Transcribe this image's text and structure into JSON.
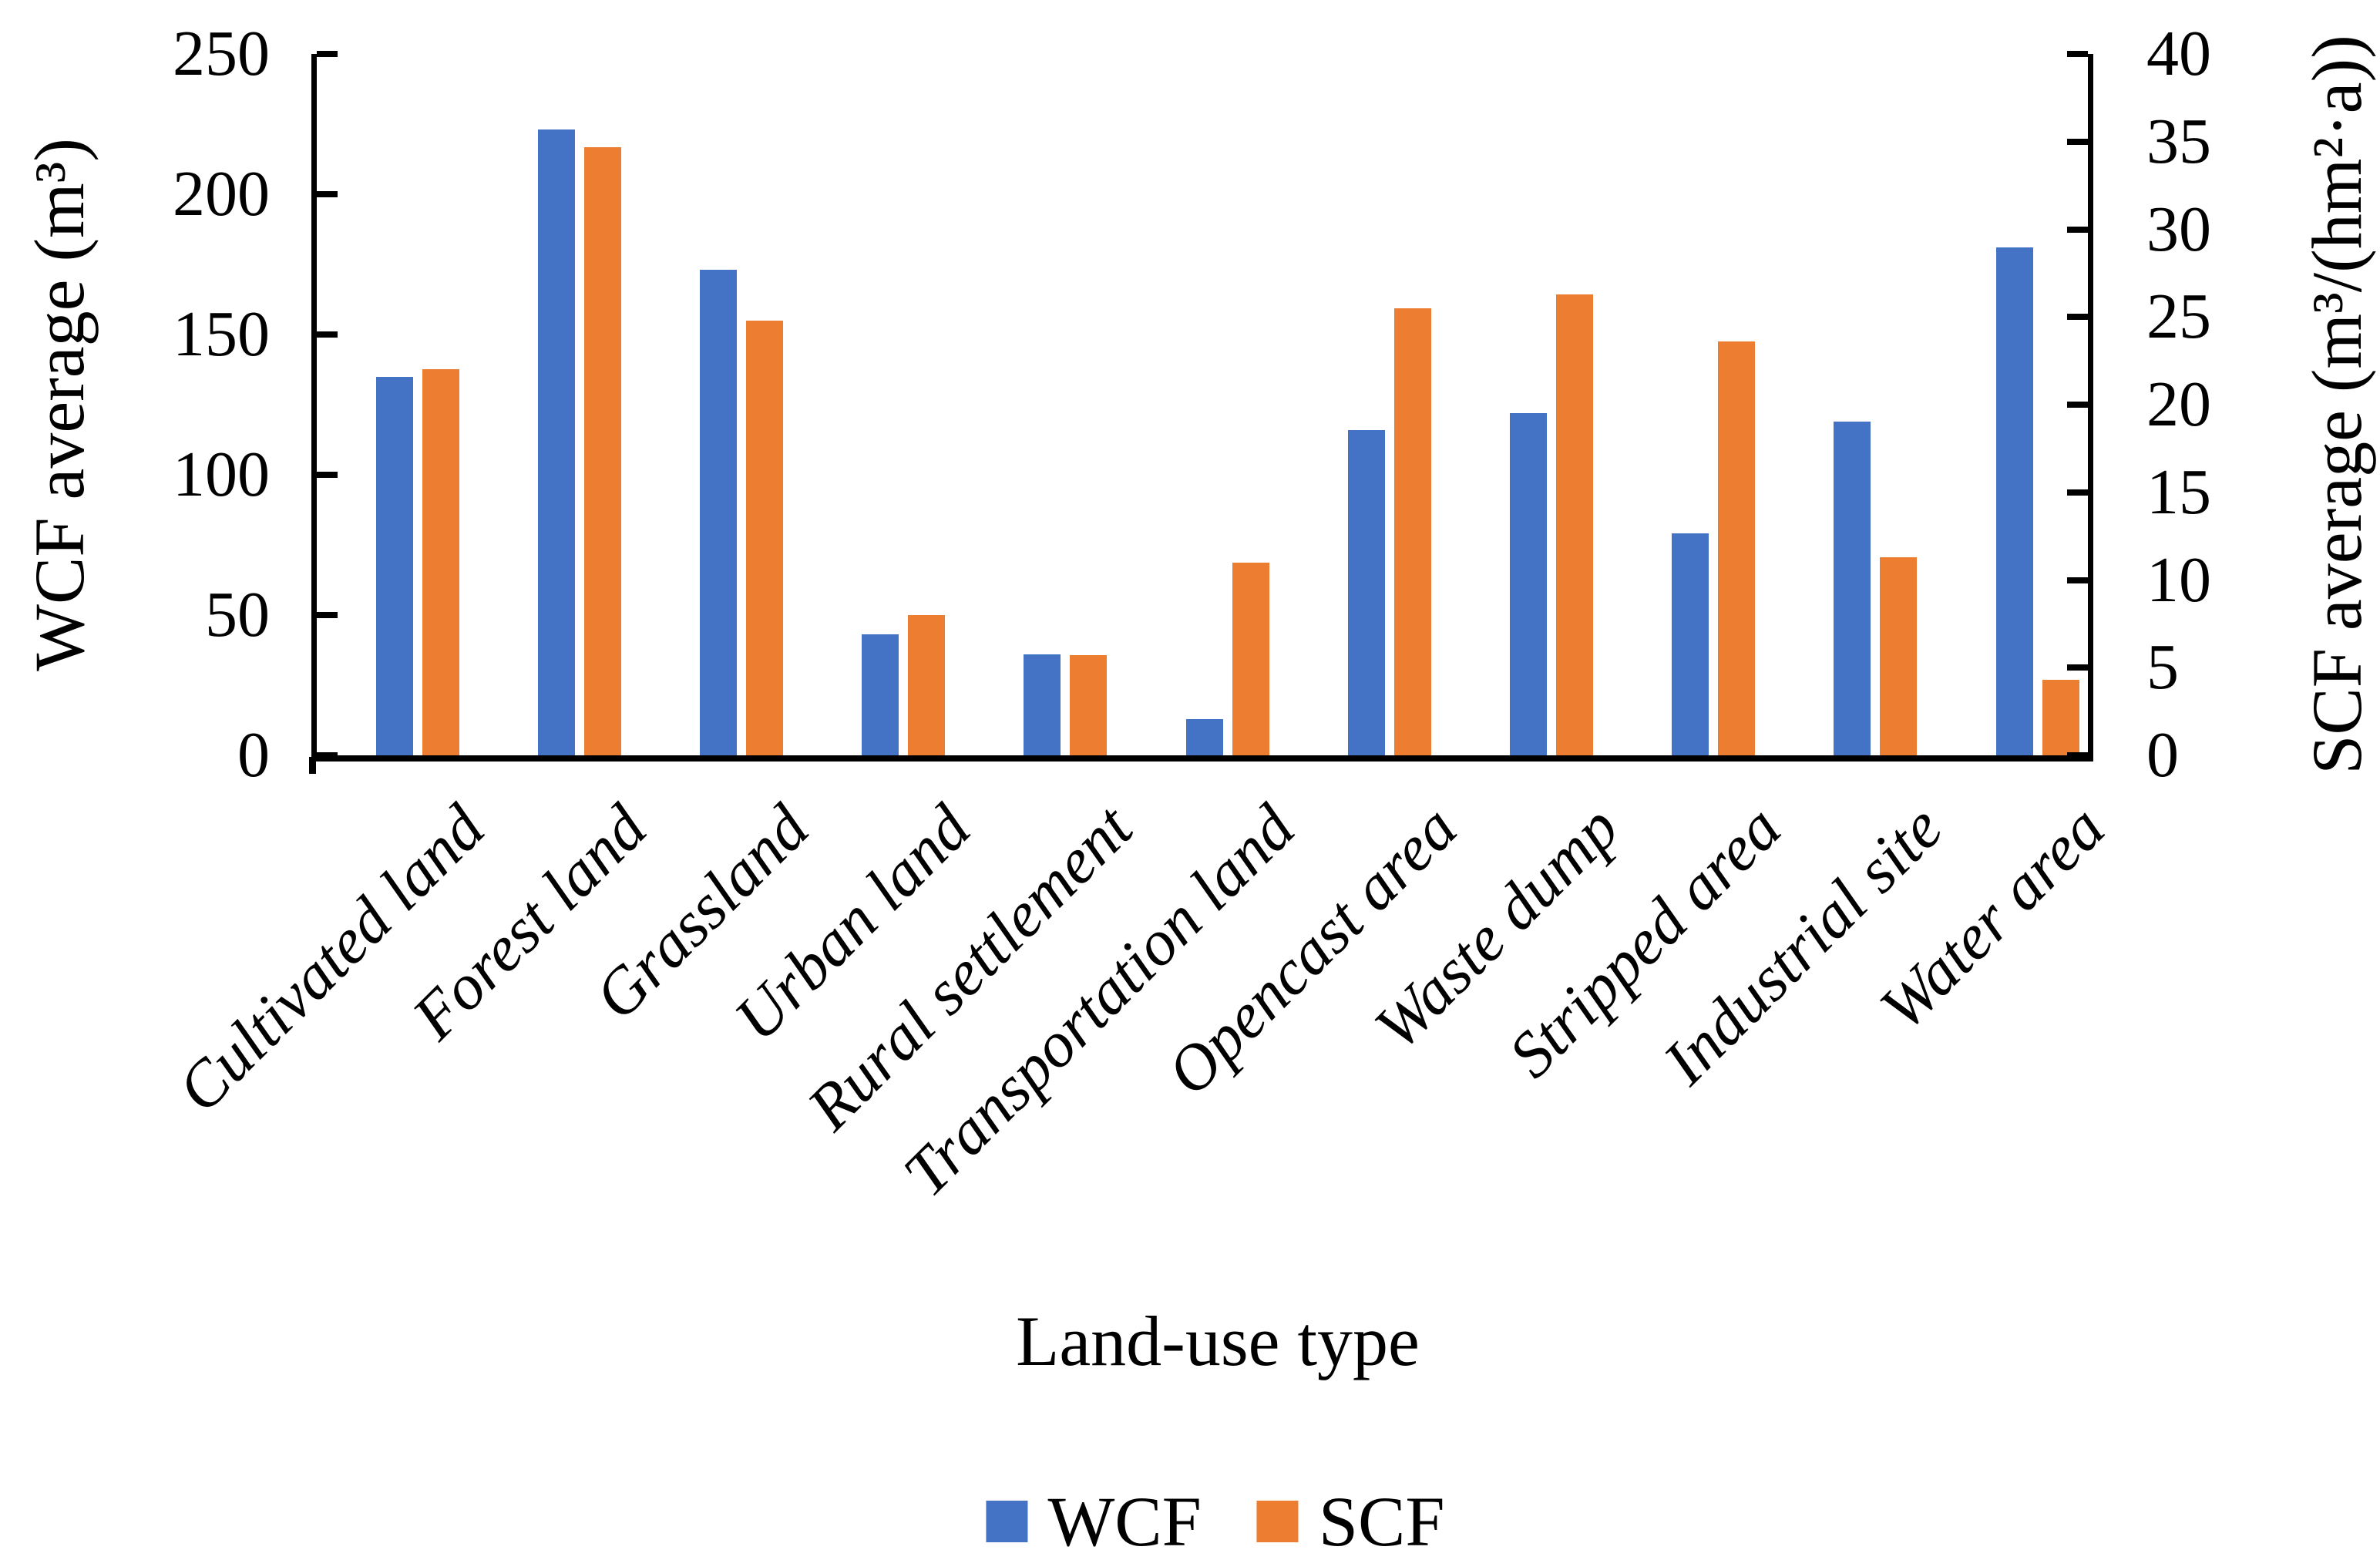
{
  "chart_data": {
    "type": "bar",
    "title": "",
    "categories": [
      "Cultivated land",
      "Forest land",
      "Grassland",
      "Urban land",
      "Rural settlement",
      "Transportation land",
      "Opencast area",
      "Waste dump",
      "Stripped area",
      "Industrial site",
      "Water area"
    ],
    "series": [
      {
        "name": "WCF",
        "axis": "left",
        "color": "#4472C4",
        "values": [
          135,
          223,
          173,
          43,
          36,
          13,
          116,
          122,
          79,
          119,
          181
        ]
      },
      {
        "name": "SCF",
        "axis": "right",
        "color": "#ED7D31",
        "values": [
          22,
          34.7,
          24.8,
          8,
          5.7,
          11,
          25.5,
          26.3,
          23.6,
          11.3,
          4.3
        ]
      }
    ],
    "xlabel": "Land-use type",
    "left_axis": {
      "label": "WCF average (m³)",
      "min": 0,
      "max": 250,
      "ticks": [
        0,
        50,
        100,
        150,
        200,
        250
      ]
    },
    "right_axis": {
      "label": "SCF average (m³/(hm²·a))",
      "min": 0,
      "max": 40,
      "ticks": [
        0,
        5,
        10,
        15,
        20,
        25,
        30,
        35,
        40
      ]
    },
    "legend": [
      "WCF",
      "SCF"
    ],
    "legend_position": "bottom",
    "grid": false,
    "background": "#FFFFFF",
    "axis_color": "#000000"
  }
}
